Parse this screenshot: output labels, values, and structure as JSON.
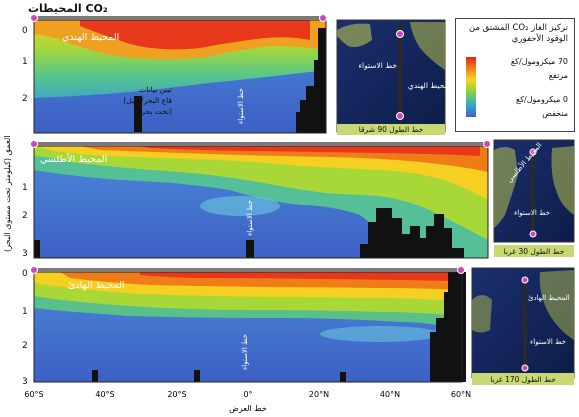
{
  "figure": {
    "title": "CO₂ المحيطات",
    "axis_label_depth": "العمق (كيلومتر تحت مستوى البحر)",
    "axis_label_latitude": "خط العرض",
    "latitude_ticks": [
      "60°S",
      "40°S",
      "20°S",
      "0°",
      "20°N",
      "40°N",
      "60°N"
    ]
  },
  "legend": {
    "title": "تركيز الغاز CO₂ المشتق من الوقود الأحفوري",
    "high_value": "70 ميكرومول/كغ",
    "high_label": "مرتفع",
    "low_value": "0 ميكرومول/كغ",
    "low_label": "منخفض",
    "colors": [
      "#e3221e",
      "#f07a18",
      "#f5d81c",
      "#8cd23a",
      "#32b0c8",
      "#3d63c8"
    ]
  },
  "panels": [
    {
      "name": "المحيط الهندي",
      "depth_ticks": [
        "0",
        "1",
        "2"
      ],
      "equator_label": "خط الاستواء",
      "annotation": [
        "تبين بيانات",
        "(قاع البحر/ جبل",
        "تحت بحري)"
      ],
      "map_ocean_label": "المحيط الهندي",
      "map_equator_label": "خط الاستواء",
      "map_caption": "خط الطول 90 شرقا"
    },
    {
      "name": "المحيط الأطلسي",
      "depth_ticks": [
        "1",
        "2",
        "3"
      ],
      "equator_label": "خط الاستواء",
      "map_ocean_label": "المحيط الأطلسي",
      "map_equator_label": "خط الاستواء",
      "map_caption": "خط الطول 30 غربا"
    },
    {
      "name": "المحيط الهادئ",
      "depth_ticks": [
        "0",
        "1",
        "2",
        "3"
      ],
      "equator_label": "خط الاستواء",
      "map_ocean_label": "المحيط الهادئ",
      "map_equator_label": "خط الاستواء",
      "map_caption": "خط الطول 170 غربا"
    }
  ]
}
